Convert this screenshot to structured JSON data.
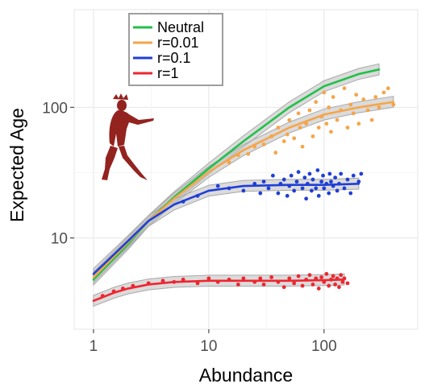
{
  "chart_data": {
    "type": "scatter",
    "xlabel": "Abundance",
    "ylabel": "Expected Age",
    "x_scale": "log",
    "y_scale": "log",
    "xlim": [
      0.68,
      650
    ],
    "ylim": [
      2.0,
      560
    ],
    "x_ticks": [
      {
        "value": 1,
        "label": "1"
      },
      {
        "value": 10,
        "label": "10"
      },
      {
        "value": 100,
        "label": "100"
      }
    ],
    "y_ticks": [
      {
        "value": 10,
        "label": "10"
      },
      {
        "value": 100,
        "label": "100"
      }
    ],
    "grid": true,
    "legend_position": "top-left",
    "legend": [
      {
        "label": "Neutral",
        "color": "#22c04a"
      },
      {
        "label": "r=0.01",
        "color": "#f5a54a"
      },
      {
        "label": "r=0.1",
        "color": "#1f3fd6"
      },
      {
        "label": "r=1",
        "color": "#ee2630"
      }
    ],
    "ribbon_color": "#bdbdbd",
    "series": [
      {
        "name": "Neutral",
        "color": "#22c04a",
        "fit": [
          [
            1,
            4.8
          ],
          [
            2,
            9.0
          ],
          [
            3,
            13.5
          ],
          [
            5,
            20.5
          ],
          [
            10,
            34
          ],
          [
            20,
            55
          ],
          [
            50,
            100
          ],
          [
            100,
            145
          ],
          [
            200,
            180
          ],
          [
            300,
            195
          ]
        ]
      },
      {
        "name": "r=0.01",
        "color": "#f5a54a",
        "fit": [
          [
            1,
            5.0
          ],
          [
            2,
            9.3
          ],
          [
            3,
            13.5
          ],
          [
            5,
            20
          ],
          [
            10,
            32
          ],
          [
            20,
            47
          ],
          [
            50,
            70
          ],
          [
            100,
            88
          ],
          [
            200,
            100
          ],
          [
            400,
            110
          ]
        ],
        "points": [
          [
            15,
            38
          ],
          [
            18,
            43
          ],
          [
            22,
            44
          ],
          [
            25,
            50
          ],
          [
            30,
            52
          ],
          [
            35,
            60
          ],
          [
            38,
            45
          ],
          [
            40,
            70
          ],
          [
            45,
            55
          ],
          [
            48,
            62
          ],
          [
            50,
            80
          ],
          [
            55,
            58
          ],
          [
            60,
            90
          ],
          [
            62,
            70
          ],
          [
            65,
            50
          ],
          [
            70,
            75
          ],
          [
            75,
            95
          ],
          [
            80,
            60
          ],
          [
            85,
            110
          ],
          [
            90,
            70
          ],
          [
            95,
            85
          ],
          [
            100,
            130
          ],
          [
            105,
            75
          ],
          [
            110,
            100
          ],
          [
            115,
            65
          ],
          [
            120,
            120
          ],
          [
            130,
            80
          ],
          [
            140,
            95
          ],
          [
            150,
            140
          ],
          [
            160,
            70
          ],
          [
            170,
            105
          ],
          [
            180,
            90
          ],
          [
            190,
            125
          ],
          [
            200,
            75
          ],
          [
            220,
            115
          ],
          [
            240,
            95
          ],
          [
            260,
            80
          ],
          [
            280,
            120
          ],
          [
            300,
            100
          ],
          [
            330,
            130
          ],
          [
            360,
            140
          ],
          [
            400,
            105
          ]
        ]
      },
      {
        "name": "r=0.1",
        "color": "#1f3fd6",
        "fit": [
          [
            1,
            5.3
          ],
          [
            2,
            9.5
          ],
          [
            3,
            13.5
          ],
          [
            5,
            18
          ],
          [
            10,
            23
          ],
          [
            20,
            25
          ],
          [
            50,
            25.5
          ],
          [
            100,
            25.5
          ],
          [
            200,
            26
          ]
        ],
        "points": [
          [
            6,
            19
          ],
          [
            8,
            21
          ],
          [
            12,
            25
          ],
          [
            15,
            24
          ],
          [
            20,
            23
          ],
          [
            25,
            26
          ],
          [
            28,
            22
          ],
          [
            30,
            27
          ],
          [
            33,
            24
          ],
          [
            36,
            30
          ],
          [
            40,
            22
          ],
          [
            42,
            26
          ],
          [
            45,
            28
          ],
          [
            48,
            21
          ],
          [
            50,
            25
          ],
          [
            52,
            30
          ],
          [
            55,
            23
          ],
          [
            58,
            27
          ],
          [
            60,
            32
          ],
          [
            65,
            24
          ],
          [
            68,
            29
          ],
          [
            70,
            20
          ],
          [
            72,
            26
          ],
          [
            75,
            31
          ],
          [
            78,
            23
          ],
          [
            80,
            28
          ],
          [
            85,
            24
          ],
          [
            88,
            33
          ],
          [
            90,
            21
          ],
          [
            95,
            27
          ],
          [
            98,
            30
          ],
          [
            100,
            24
          ],
          [
            105,
            26
          ],
          [
            110,
            22
          ],
          [
            112,
            31
          ],
          [
            115,
            27
          ],
          [
            120,
            25
          ],
          [
            125,
            29
          ],
          [
            130,
            23
          ],
          [
            135,
            26
          ],
          [
            140,
            31
          ],
          [
            150,
            24
          ],
          [
            160,
            28
          ],
          [
            170,
            22
          ],
          [
            180,
            30
          ],
          [
            200,
            27
          ],
          [
            210,
            31
          ]
        ]
      },
      {
        "name": "r=1",
        "color": "#ee2630",
        "fit": [
          [
            1,
            3.3
          ],
          [
            1.5,
            3.8
          ],
          [
            2,
            4.1
          ],
          [
            3,
            4.4
          ],
          [
            5,
            4.6
          ],
          [
            10,
            4.7
          ],
          [
            20,
            4.7
          ],
          [
            50,
            4.7
          ],
          [
            100,
            4.75
          ],
          [
            150,
            4.8
          ]
        ],
        "points": [
          [
            1.2,
            3.6
          ],
          [
            1.5,
            3.9
          ],
          [
            1.8,
            4.1
          ],
          [
            2.2,
            4.3
          ],
          [
            3,
            4.5
          ],
          [
            4,
            4.7
          ],
          [
            5,
            4.6
          ],
          [
            6,
            4.8
          ],
          [
            8,
            4.5
          ],
          [
            10,
            4.9
          ],
          [
            12,
            4.6
          ],
          [
            15,
            4.8
          ],
          [
            18,
            4.4
          ],
          [
            20,
            4.9
          ],
          [
            25,
            4.6
          ],
          [
            28,
            4.9
          ],
          [
            30,
            4.4
          ],
          [
            35,
            5.0
          ],
          [
            40,
            4.6
          ],
          [
            45,
            4.2
          ],
          [
            50,
            4.9
          ],
          [
            55,
            4.5
          ],
          [
            60,
            5.1
          ],
          [
            65,
            4.3
          ],
          [
            70,
            4.8
          ],
          [
            75,
            5.2
          ],
          [
            80,
            4.4
          ],
          [
            85,
            4.9
          ],
          [
            90,
            4.1
          ],
          [
            95,
            5.0
          ],
          [
            100,
            4.6
          ],
          [
            105,
            5.3
          ],
          [
            110,
            4.3
          ],
          [
            115,
            4.8
          ],
          [
            120,
            5.1
          ],
          [
            125,
            4.4
          ],
          [
            130,
            4.9
          ],
          [
            135,
            4.2
          ],
          [
            140,
            5.2
          ],
          [
            145,
            4.6
          ],
          [
            150,
            4.9
          ],
          [
            160,
            4.5
          ]
        ]
      }
    ]
  }
}
